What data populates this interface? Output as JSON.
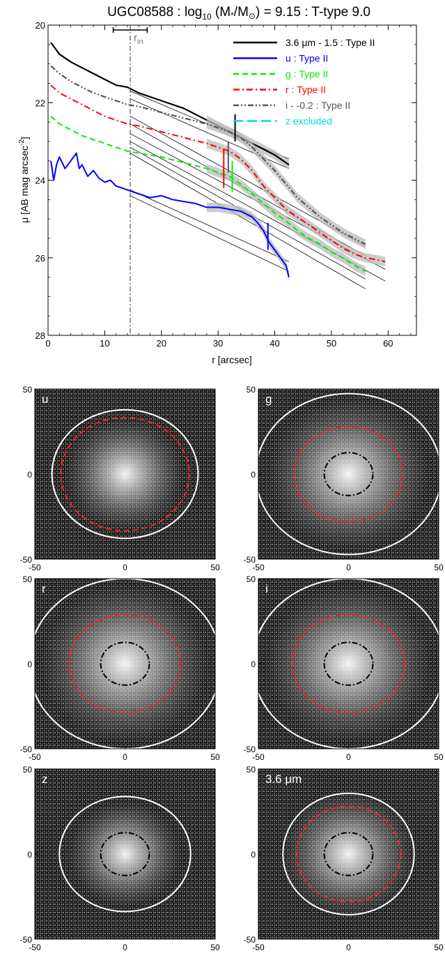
{
  "title": "UGC08588 : log10 (M*/M⊙) = 9.15 : T-type 9.0",
  "title_parts": {
    "name": "UGC08588 : log",
    "sub": "10",
    "mid": " (M",
    "star": "*",
    "over": "/M",
    "sun": "⊙",
    "tail": ") = 9.15 : T-type 9.0"
  },
  "profile_plot": {
    "xlabel": "r [arcsec]",
    "ylabel_main": "μ [AB mag arcsec",
    "ylabel_sup": "-2",
    "ylabel_end": "]",
    "rin_label": "r",
    "rin_sub": "in"
  },
  "chart_data": {
    "type": "line",
    "xlabel": "r [arcsec]",
    "ylabel": "μ [AB mag arcsec-2]",
    "xlim": [
      0,
      65
    ],
    "ylim": [
      28,
      20
    ],
    "y_inverted": true,
    "xticks": [
      "0",
      "10",
      "20",
      "30",
      "40",
      "50",
      "60"
    ],
    "yticks": [
      "20",
      "22",
      "24",
      "26",
      "28"
    ],
    "r_in": 14.5,
    "r_in_error": [
      11.5,
      17.5
    ],
    "legend_position": "top-right",
    "legend": [
      {
        "label": "3.6 μm - 1.5 : Type II",
        "color": "#000000",
        "style": "solid"
      },
      {
        "label": "u : Type II",
        "color": "#0000ff",
        "style": "solid"
      },
      {
        "label": "g : Type II",
        "color": "#00ee00",
        "style": "dash"
      },
      {
        "label": "r : Type II",
        "color": "#ff0000",
        "style": "dashdot"
      },
      {
        "label": "i - -0.2 : Type II",
        "color": "#555555",
        "style": "dashdotdot"
      },
      {
        "label": "z excluded",
        "color": "#00dddd",
        "style": "longdash"
      }
    ],
    "series": [
      {
        "name": "3.6 μm - 1.5 : Type II",
        "color": "#000000",
        "style": "solid",
        "width": 2.2,
        "x": [
          0.5,
          2,
          4,
          6,
          8,
          10,
          12,
          14,
          16,
          20,
          24,
          28,
          32,
          34,
          36,
          38,
          40,
          42.5
        ],
        "y": [
          20.45,
          20.75,
          20.95,
          21.1,
          21.25,
          21.4,
          21.55,
          21.6,
          21.75,
          21.95,
          22.15,
          22.45,
          22.75,
          22.9,
          23.05,
          23.2,
          23.35,
          23.6
        ]
      },
      {
        "name": "u : Type II",
        "color": "#0000ff",
        "style": "solid",
        "width": 2,
        "x": [
          0.5,
          1,
          1.5,
          2,
          3,
          4,
          5,
          5.5,
          6,
          7,
          8,
          9,
          10,
          11,
          12,
          13,
          14,
          16,
          18,
          20,
          22,
          24,
          26,
          28,
          30,
          32,
          34,
          36,
          37,
          38,
          39,
          40,
          41,
          42,
          42.5
        ],
        "y": [
          23.5,
          24.0,
          23.6,
          23.4,
          23.7,
          23.5,
          23.3,
          23.7,
          23.6,
          23.9,
          23.75,
          23.95,
          24.05,
          24.0,
          24.15,
          24.2,
          24.25,
          24.35,
          24.45,
          24.4,
          24.5,
          24.55,
          24.6,
          24.7,
          24.7,
          24.75,
          24.8,
          24.95,
          25.1,
          25.3,
          25.6,
          25.8,
          26.0,
          26.2,
          26.5
        ]
      },
      {
        "name": "g : Type II",
        "color": "#00ee00",
        "style": "dash",
        "width": 2,
        "x": [
          0.5,
          2,
          4,
          6,
          8,
          10,
          12,
          14,
          16,
          20,
          24,
          28,
          32,
          34,
          36,
          38,
          40,
          42,
          44,
          46,
          48,
          50,
          52,
          54,
          56
        ],
        "y": [
          22.35,
          22.55,
          22.7,
          22.85,
          22.95,
          23.05,
          23.15,
          23.25,
          23.3,
          23.4,
          23.55,
          23.7,
          23.9,
          24.1,
          24.35,
          24.6,
          24.85,
          25.05,
          25.3,
          25.5,
          25.65,
          25.85,
          26.0,
          26.2,
          26.35
        ]
      },
      {
        "name": "r : Type II",
        "color": "#ff0000",
        "style": "dashdot",
        "width": 2,
        "x": [
          0.5,
          2,
          4,
          6,
          8,
          10,
          12,
          14,
          16,
          20,
          24,
          28,
          32,
          34,
          36,
          38,
          40,
          42,
          44,
          46,
          48,
          50,
          52,
          54,
          56,
          58,
          59.5
        ],
        "y": [
          21.55,
          21.75,
          21.9,
          22.05,
          22.2,
          22.35,
          22.45,
          22.55,
          22.6,
          22.75,
          22.9,
          23.05,
          23.25,
          23.45,
          23.75,
          24.15,
          24.45,
          24.75,
          24.95,
          25.15,
          25.35,
          25.55,
          25.75,
          25.9,
          26.0,
          26.05,
          26.1
        ]
      },
      {
        "name": "i - -0.2 : Type II",
        "color": "#555555",
        "style": "dashdotdot",
        "width": 2.2,
        "x": [
          0.5,
          2,
          4,
          6,
          8,
          10,
          12,
          14,
          16,
          20,
          24,
          28,
          32,
          34,
          36,
          38,
          40,
          42,
          44,
          46,
          48,
          50,
          52,
          54,
          56
        ],
        "y": [
          21.05,
          21.25,
          21.45,
          21.6,
          21.75,
          21.85,
          21.95,
          22.05,
          22.1,
          22.25,
          22.4,
          22.55,
          22.75,
          22.9,
          23.15,
          23.45,
          23.75,
          24.1,
          24.45,
          24.7,
          24.95,
          25.15,
          25.35,
          25.5,
          25.65
        ]
      }
    ],
    "fit_lines": [
      {
        "x1": 14.5,
        "y1": 21.7,
        "x2": 42.5,
        "y2": 23.45
      },
      {
        "x1": 14.5,
        "y1": 21.9,
        "x2": 42.5,
        "y2": 23.7
      },
      {
        "x1": 14.5,
        "y1": 22.35,
        "x2": 56,
        "y2": 25.7
      },
      {
        "x1": 14.5,
        "y1": 22.55,
        "x2": 56,
        "y2": 25.95
      },
      {
        "x1": 14.5,
        "y1": 22.8,
        "x2": 59.5,
        "y2": 26.3
      },
      {
        "x1": 14.5,
        "y1": 23.0,
        "x2": 59.5,
        "y2": 26.6
      },
      {
        "x1": 14.5,
        "y1": 23.15,
        "x2": 56,
        "y2": 26.55
      },
      {
        "x1": 14.5,
        "y1": 23.3,
        "x2": 56,
        "y2": 26.8
      },
      {
        "x1": 14.5,
        "y1": 24.25,
        "x2": 42.5,
        "y2": 26.1
      },
      {
        "x1": 14.5,
        "y1": 24.4,
        "x2": 42.5,
        "y2": 26.35
      }
    ],
    "break_markers": [
      {
        "x": 33.0,
        "y1": 22.3,
        "y2": 23.0,
        "color": "#000000"
      },
      {
        "x": 31.0,
        "y1": 23.2,
        "y2": 24.2,
        "color": "#ff0000"
      },
      {
        "x": 31.8,
        "y1": 23.0,
        "y2": 23.8,
        "color": "#555555"
      },
      {
        "x": 32.5,
        "y1": 23.5,
        "y2": 24.3,
        "color": "#00ee00"
      },
      {
        "x": 38.8,
        "y1": 25.1,
        "y2": 25.8,
        "color": "#0000ff"
      }
    ]
  },
  "image_panels": [
    {
      "label": "u",
      "label_color": "#ffffff",
      "lim": [
        -50,
        50
      ],
      "ticks": [
        "-50",
        "0",
        "50"
      ],
      "ellipses": [
        {
          "style": "solid-white",
          "rx": 40.5,
          "ry": 37.8
        },
        {
          "style": "dash-red",
          "rx": 35.6,
          "ry": 33.3
        }
      ]
    },
    {
      "label": "g",
      "label_color": "#ffffff",
      "lim": [
        -50,
        50
      ],
      "ticks": [
        "-50",
        "0",
        "50"
      ],
      "ellipses": [
        {
          "style": "solid-white",
          "rx": 51.4,
          "ry": 47.3
        },
        {
          "style": "dash-red",
          "rx": 30.0,
          "ry": 27.9
        },
        {
          "style": "dashdot-black",
          "rx": 13.5,
          "ry": 12.6
        }
      ]
    },
    {
      "label": "r",
      "label_color": "#ffffff",
      "lim": [
        -50,
        50
      ],
      "ticks": [
        "-50",
        "0",
        "50"
      ],
      "ellipses": [
        {
          "style": "solid-white",
          "rx": 53.3,
          "ry": 50.0
        },
        {
          "style": "dash-red",
          "rx": 30.8,
          "ry": 28.8
        },
        {
          "style": "dashdot-black",
          "rx": 13.5,
          "ry": 12.6
        }
      ]
    },
    {
      "label": "i",
      "label_color": "#ffffff",
      "lim": [
        -50,
        50
      ],
      "ticks": [
        "-50",
        "0",
        "50"
      ],
      "ellipses": [
        {
          "style": "solid-white",
          "rx": 53.3,
          "ry": 50.0
        },
        {
          "style": "dash-red",
          "rx": 31.2,
          "ry": 28.8
        },
        {
          "style": "dashdot-black",
          "rx": 13.5,
          "ry": 12.6
        }
      ]
    },
    {
      "label": "z",
      "label_color": "#ffffff",
      "lim": [
        -50,
        50
      ],
      "ticks": [
        "-50",
        "0",
        "50"
      ],
      "ellipses": [
        {
          "style": "solid-white",
          "rx": 36.4,
          "ry": 33.8
        },
        {
          "style": "dashdot-black",
          "rx": 13.5,
          "ry": 12.6
        }
      ]
    },
    {
      "label": "3.6 μm",
      "label_color": "#ffffff",
      "lim": [
        -50,
        50
      ],
      "ticks": [
        "-50",
        "0",
        "50"
      ],
      "ellipses": [
        {
          "style": "solid-white",
          "rx": 36.4,
          "ry": 35.7
        },
        {
          "style": "dash-red",
          "rx": 28.8,
          "ry": 28.1
        },
        {
          "style": "dashdot-black",
          "rx": 13.5,
          "ry": 12.6
        }
      ]
    }
  ]
}
